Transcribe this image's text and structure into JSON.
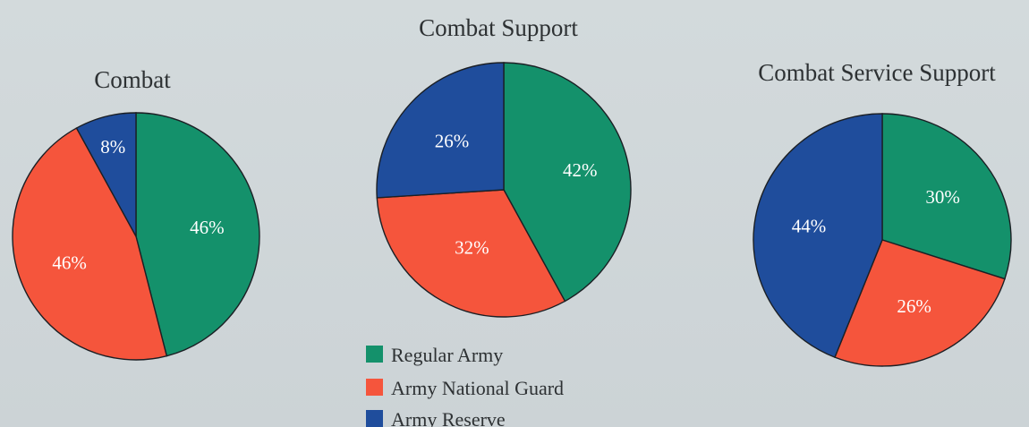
{
  "colors": {
    "regular_army": "#14916b",
    "army_national_guard": "#f5553c",
    "army_reserve": "#1f4d9c"
  },
  "legend": [
    {
      "label": "Regular Army",
      "color": "#14916b"
    },
    {
      "label": "Army National Guard",
      "color": "#f5553c"
    },
    {
      "label": "Army Reserve",
      "color": "#1f4d9c"
    }
  ],
  "chart_data": [
    {
      "type": "pie",
      "title": "Combat",
      "categories": [
        "Regular Army",
        "Army National Guard",
        "Army Reserve"
      ],
      "values": [
        46,
        46,
        8
      ],
      "labels": [
        "46%",
        "46%",
        "8%"
      ],
      "colors": [
        "#14916b",
        "#f5553c",
        "#1f4d9c"
      ]
    },
    {
      "type": "pie",
      "title": "Combat Support",
      "categories": [
        "Regular Army",
        "Army National Guard",
        "Army Reserve"
      ],
      "values": [
        42,
        32,
        26
      ],
      "labels": [
        "42%",
        "32%",
        "26%"
      ],
      "colors": [
        "#14916b",
        "#f5553c",
        "#1f4d9c"
      ]
    },
    {
      "type": "pie",
      "title": "Combat Service Support",
      "categories": [
        "Regular Army",
        "Army National Guard",
        "Army Reserve"
      ],
      "values": [
        30,
        26,
        44
      ],
      "labels": [
        "30%",
        "26%",
        "44%"
      ],
      "colors": [
        "#14916b",
        "#f5553c",
        "#1f4d9c"
      ]
    }
  ]
}
